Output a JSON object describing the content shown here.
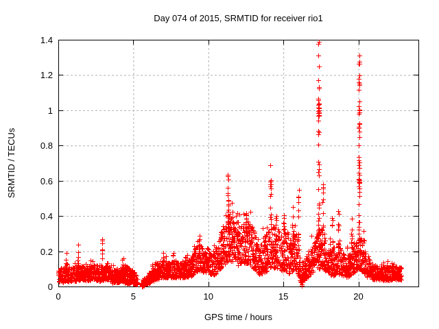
{
  "figure": {
    "background": "#ffffff",
    "border_color": "#000000",
    "grid_color": "#b0b0b0",
    "text_color": "#000000"
  },
  "chart_data": {
    "type": "scatter",
    "title": "Day 074 of 2015, SRMTID for receiver rio1",
    "xlabel": "GPS time / hours",
    "ylabel": "SRMTID / TECUs",
    "xlim": [
      0,
      24
    ],
    "ylim": [
      0,
      1.4
    ],
    "xticks": [
      0,
      5,
      10,
      15,
      20
    ],
    "xtick_labels": [
      "0",
      "5",
      "10",
      "15",
      "20"
    ],
    "yticks": [
      0,
      0.2,
      0.4,
      0.6,
      0.8,
      1,
      1.2,
      1.4
    ],
    "ytick_labels": [
      "0",
      "0.2",
      "0.4",
      "0.6",
      "0.8",
      "1",
      "1.2",
      "1.4"
    ],
    "grid": true,
    "legend": "none",
    "series": [
      {
        "name": "SRMTID",
        "marker": "+",
        "color": "#ff0000"
      }
    ],
    "x_data_range": [
      0,
      22.85
    ],
    "band_envelope": [
      [
        0.0,
        0.03,
        0.1
      ],
      [
        0.4,
        0.02,
        0.11
      ],
      [
        0.8,
        0.03,
        0.11
      ],
      [
        1.2,
        0.03,
        0.12
      ],
      [
        1.6,
        0.04,
        0.12
      ],
      [
        2.0,
        0.03,
        0.1
      ],
      [
        2.4,
        0.04,
        0.13
      ],
      [
        2.8,
        0.03,
        0.12
      ],
      [
        3.2,
        0.04,
        0.12
      ],
      [
        3.6,
        0.02,
        0.1
      ],
      [
        4.0,
        0.02,
        0.09
      ],
      [
        4.3,
        0.03,
        0.13
      ],
      [
        4.6,
        0.01,
        0.12
      ],
      [
        4.9,
        0.02,
        0.1
      ],
      [
        5.25,
        0.01,
        0.06
      ],
      [
        5.6,
        0.0,
        0.04
      ],
      [
        5.8,
        0.01,
        0.05
      ],
      [
        6.1,
        0.02,
        0.09
      ],
      [
        6.5,
        0.04,
        0.13
      ],
      [
        6.9,
        0.05,
        0.16
      ],
      [
        7.3,
        0.05,
        0.14
      ],
      [
        7.7,
        0.05,
        0.15
      ],
      [
        8.1,
        0.05,
        0.14
      ],
      [
        8.5,
        0.05,
        0.15
      ],
      [
        8.9,
        0.06,
        0.18
      ],
      [
        9.3,
        0.09,
        0.26
      ],
      [
        9.7,
        0.08,
        0.23
      ],
      [
        10.0,
        0.08,
        0.22
      ],
      [
        10.3,
        0.06,
        0.18
      ],
      [
        10.6,
        0.08,
        0.25
      ],
      [
        11.0,
        0.12,
        0.33
      ],
      [
        11.4,
        0.15,
        0.42
      ],
      [
        11.8,
        0.13,
        0.38
      ],
      [
        12.1,
        0.11,
        0.34
      ],
      [
        12.4,
        0.13,
        0.38
      ],
      [
        12.7,
        0.13,
        0.39
      ],
      [
        13.0,
        0.1,
        0.33
      ],
      [
        13.4,
        0.07,
        0.26
      ],
      [
        13.8,
        0.08,
        0.3
      ],
      [
        14.2,
        0.11,
        0.37
      ],
      [
        14.5,
        0.1,
        0.35
      ],
      [
        14.8,
        0.09,
        0.3
      ],
      [
        15.1,
        0.09,
        0.32
      ],
      [
        15.4,
        0.07,
        0.28
      ],
      [
        15.7,
        0.09,
        0.32
      ],
      [
        16.0,
        0.07,
        0.28
      ],
      [
        16.15,
        0.02,
        0.1
      ],
      [
        16.45,
        0.04,
        0.16
      ],
      [
        16.75,
        0.06,
        0.22
      ],
      [
        17.05,
        0.09,
        0.28
      ],
      [
        17.35,
        0.1,
        0.32
      ],
      [
        17.65,
        0.1,
        0.33
      ],
      [
        17.95,
        0.07,
        0.24
      ],
      [
        18.25,
        0.06,
        0.22
      ],
      [
        18.55,
        0.07,
        0.26
      ],
      [
        18.85,
        0.06,
        0.22
      ],
      [
        19.15,
        0.05,
        0.18
      ],
      [
        19.45,
        0.06,
        0.2
      ],
      [
        19.75,
        0.08,
        0.26
      ],
      [
        20.0,
        0.1,
        0.3
      ],
      [
        20.3,
        0.08,
        0.23
      ],
      [
        20.6,
        0.05,
        0.16
      ],
      [
        21.0,
        0.04,
        0.13
      ],
      [
        21.4,
        0.04,
        0.12
      ],
      [
        21.8,
        0.03,
        0.12
      ],
      [
        22.2,
        0.04,
        0.12
      ],
      [
        22.85,
        0.04,
        0.11
      ]
    ],
    "band_gaps": [
      [
        5.28,
        5.55
      ]
    ],
    "spikes": [
      [
        0.52,
        0.02,
        0.1,
        0.22,
        6
      ],
      [
        1.33,
        0.02,
        0.08,
        0.25,
        8
      ],
      [
        2.15,
        0.02,
        0.08,
        0.17,
        5
      ],
      [
        2.92,
        0.02,
        0.1,
        0.27,
        8
      ],
      [
        4.3,
        0.03,
        0.08,
        0.16,
        5
      ],
      [
        7.0,
        0.02,
        0.1,
        0.24,
        6
      ],
      [
        7.65,
        0.02,
        0.08,
        0.2,
        5
      ],
      [
        9.42,
        0.03,
        0.14,
        0.32,
        9
      ],
      [
        10.85,
        0.03,
        0.18,
        0.36,
        7
      ],
      [
        11.32,
        0.04,
        0.3,
        0.65,
        20
      ],
      [
        11.62,
        0.03,
        0.25,
        0.5,
        10
      ],
      [
        11.95,
        0.03,
        0.22,
        0.46,
        8
      ],
      [
        12.55,
        0.04,
        0.25,
        0.46,
        10
      ],
      [
        13.9,
        0.03,
        0.18,
        0.38,
        6
      ],
      [
        14.15,
        0.03,
        0.28,
        0.7,
        15
      ],
      [
        14.5,
        0.03,
        0.22,
        0.42,
        8
      ],
      [
        15.05,
        0.03,
        0.2,
        0.45,
        8
      ],
      [
        15.6,
        0.03,
        0.22,
        0.5,
        9
      ],
      [
        16.0,
        0.03,
        0.22,
        0.55,
        10
      ],
      [
        17.35,
        0.025,
        0.25,
        1.39,
        30
      ],
      [
        17.62,
        0.03,
        0.32,
        0.6,
        10
      ],
      [
        18.25,
        0.03,
        0.2,
        0.4,
        8
      ],
      [
        18.65,
        0.03,
        0.2,
        0.45,
        10
      ],
      [
        19.55,
        0.03,
        0.18,
        0.4,
        8
      ],
      [
        20.05,
        0.025,
        0.25,
        1.31,
        34
      ],
      [
        20.35,
        0.03,
        0.14,
        0.32,
        6
      ]
    ],
    "clusters": [
      [
        5.66,
        0.05,
        0.015,
        0.015,
        16
      ],
      [
        16.25,
        0.05,
        0.055,
        0.035,
        12
      ],
      [
        16.22,
        0.02,
        0.006,
        0.006,
        3
      ],
      [
        17.35,
        0.02,
        1.0,
        0.05,
        14
      ],
      [
        20.05,
        0.02,
        0.6,
        0.12,
        12
      ]
    ],
    "outlier_points": [
      [
        17.35,
        1.39
      ],
      [
        17.34,
        1.31
      ],
      [
        17.36,
        1.25
      ],
      [
        17.33,
        1.17
      ],
      [
        17.36,
        1.13
      ],
      [
        20.05,
        1.31
      ],
      [
        20.04,
        1.18
      ],
      [
        20.06,
        1.05
      ],
      [
        20.03,
        0.98
      ],
      [
        20.06,
        0.92
      ],
      [
        20.05,
        0.88
      ]
    ]
  }
}
